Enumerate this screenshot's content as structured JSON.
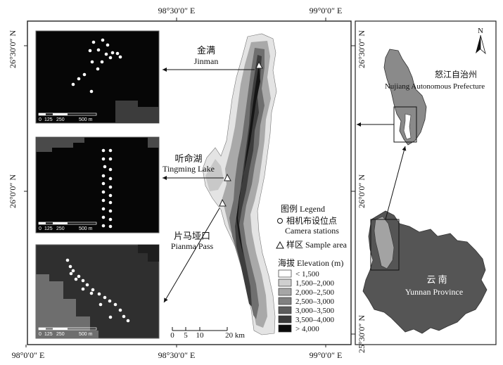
{
  "coords": {
    "top": [
      "98°30′0″ E",
      "99°0′0″ E"
    ],
    "bottom": [
      "98°0′0″ E",
      "98°30′0″ E",
      "99°0′0″ E"
    ],
    "left": [
      "26°30′0″ N",
      "26°0′0″ N"
    ],
    "right": [
      "26°30′0″ N",
      "26°0′0″ N",
      "25°30′0″ N"
    ]
  },
  "sites": {
    "jinman_cn": "金满",
    "jinman_en": "Jinman",
    "tingming_cn": "听命湖",
    "tingming_en": "Tingming Lake",
    "pianma_cn": "片马垭口",
    "pianma_en": "Pianma Pass"
  },
  "insets": {
    "scale_labels": [
      "0",
      "125",
      "250",
      "500 m"
    ],
    "stations_inset1": 17,
    "stations_inset2": 20,
    "stations_inset3": 20
  },
  "legend": {
    "title": "图例 Legend",
    "camera_cn": "相机布设位点",
    "camera_en": "Camera stations",
    "sample": "样区 Sample area",
    "elevation_title": "海拔 Elevation (m)",
    "classes": [
      {
        "label": "< 1,500",
        "color": "#ffffff"
      },
      {
        "label": "1,500–2,000",
        "color": "#cfcfcf"
      },
      {
        "label": "2,000–2,500",
        "color": "#a6a6a6"
      },
      {
        "label": "2,500–3,000",
        "color": "#808080"
      },
      {
        "label": "3,000–3,500",
        "color": "#5c5c5c"
      },
      {
        "label": "3,500–4,000",
        "color": "#3a3a3a"
      },
      {
        "label": "> 4,000",
        "color": "#0b0b0b"
      }
    ]
  },
  "scalebar": {
    "labels": [
      "0",
      "5",
      "10",
      "20 km"
    ]
  },
  "regions": {
    "nujiang_cn": "怒江自治州",
    "nujiang_en": "Nujiang Autonomous Prefecture",
    "yunnan_cn": "云 南",
    "yunnan_en": "Yunnan Province"
  },
  "north": "N"
}
